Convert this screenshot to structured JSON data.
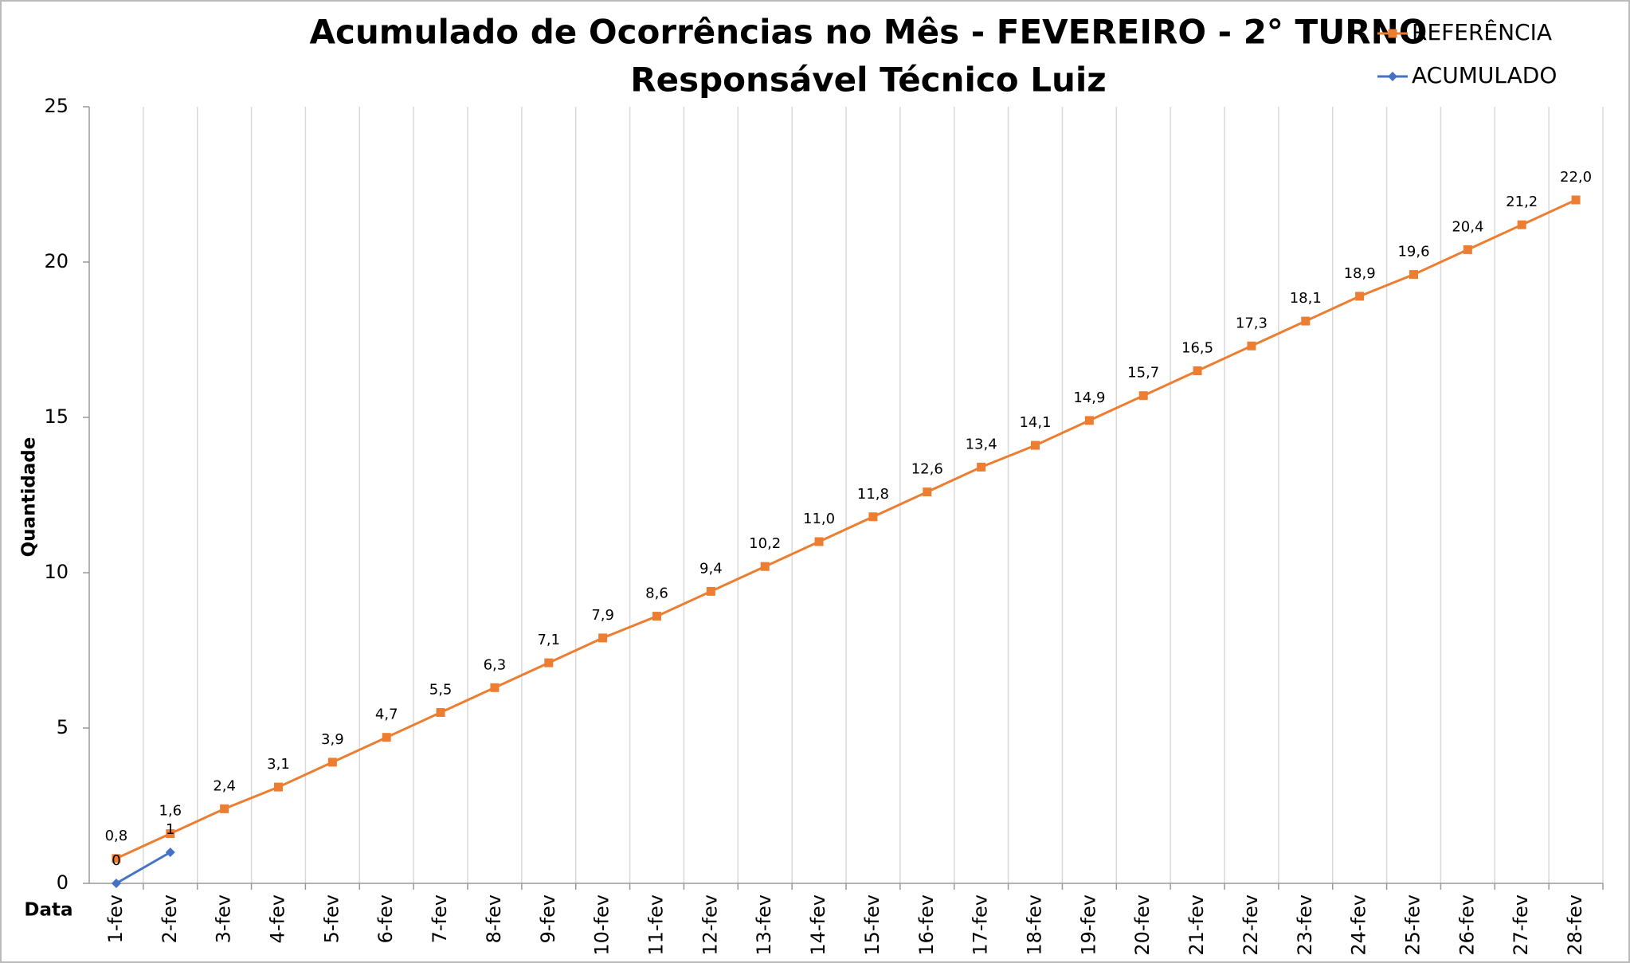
{
  "chart_data": {
    "type": "line",
    "title": "Acumulado de Ocorrências no Mês - FEVEREIRO - 2° TURNO",
    "subtitle": "Responsável Técnico Luiz",
    "x_label": "Data",
    "y_label": "Quantidade",
    "categories": [
      "1-fev",
      "2-fev",
      "3-fev",
      "4-fev",
      "5-fev",
      "6-fev",
      "7-fev",
      "8-fev",
      "9-fev",
      "10-fev",
      "11-fev",
      "12-fev",
      "13-fev",
      "14-fev",
      "15-fev",
      "16-fev",
      "17-fev",
      "18-fev",
      "19-fev",
      "20-fev",
      "21-fev",
      "22-fev",
      "23-fev",
      "24-fev",
      "25-fev",
      "26-fev",
      "27-fev",
      "28-fev"
    ],
    "series": [
      {
        "name": "REFERÊNCIA",
        "color": "#ed7d31",
        "marker": "square",
        "values": [
          0.8,
          1.6,
          2.4,
          3.1,
          3.9,
          4.7,
          5.5,
          6.3,
          7.1,
          7.9,
          8.6,
          9.4,
          10.2,
          11.0,
          11.8,
          12.6,
          13.4,
          14.1,
          14.9,
          15.7,
          16.5,
          17.3,
          18.1,
          18.9,
          19.6,
          20.4,
          21.2,
          22.0
        ],
        "value_labels": [
          "0,8",
          "1,6",
          "2,4",
          "3,1",
          "3,9",
          "4,7",
          "5,5",
          "6,3",
          "7,1",
          "7,9",
          "8,6",
          "9,4",
          "10,2",
          "11,0",
          "11,8",
          "12,6",
          "13,4",
          "14,1",
          "14,9",
          "15,7",
          "16,5",
          "17,3",
          "18,1",
          "18,9",
          "19,6",
          "20,4",
          "21,2",
          "22,0"
        ]
      },
      {
        "name": "ACUMULADO",
        "color": "#4472c4",
        "marker": "diamond",
        "values": [
          0,
          1,
          null,
          null,
          null,
          null,
          null,
          null,
          null,
          null,
          null,
          null,
          null,
          null,
          null,
          null,
          null,
          null,
          null,
          null,
          null,
          null,
          null,
          null,
          null,
          null,
          null,
          null
        ]
      }
    ],
    "ylim": [
      0,
      25
    ],
    "yticks": [
      0,
      5,
      10,
      15,
      20,
      25
    ],
    "legend": "top-right"
  }
}
